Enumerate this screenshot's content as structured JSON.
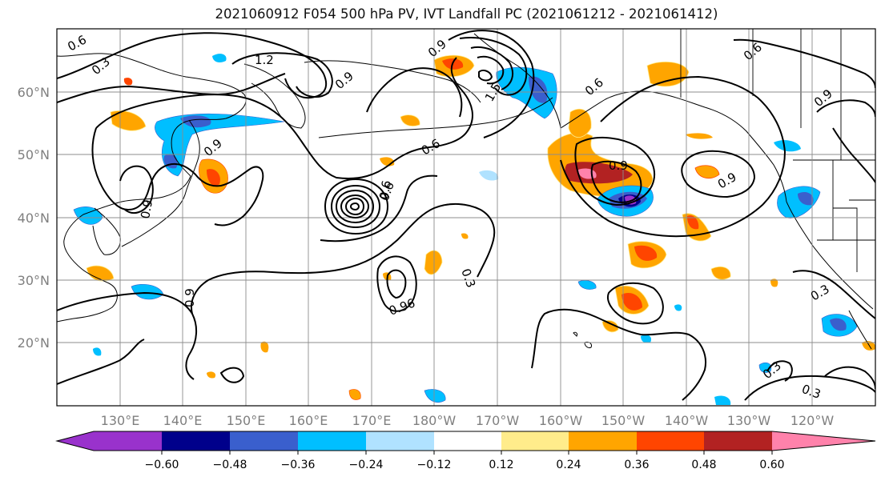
{
  "title": "2021060912 F054 500 hPa PV, IVT Landfall PC (2021061212 - 2021061412)",
  "map": {
    "lat_labels": [
      "60°N",
      "50°N",
      "40°N",
      "30°N",
      "20°N"
    ],
    "lon_labels": [
      "130°E",
      "140°E",
      "150°E",
      "160°E",
      "170°E",
      "180°W",
      "170°W",
      "160°W",
      "150°W",
      "140°W",
      "130°W",
      "120°W"
    ],
    "contour_labels": [
      "0.6",
      "0.3",
      "1.2",
      "0.9",
      "0.9",
      "1.5",
      "0.6",
      "0.9",
      "0.6",
      "0.6",
      "0.9",
      "0.9",
      "0.9",
      "0.6",
      "0.3",
      "0.9",
      "0.3",
      "0.3",
      "0.96",
      "0.6",
      "0.3",
      "0.9"
    ]
  },
  "colorbar": {
    "colors": [
      "#9932cc",
      "#00008b",
      "#3a5fcd",
      "#00bfff",
      "#b0e2ff",
      "#ffffff",
      "#ffec8b",
      "#ffa500",
      "#ff4500",
      "#b22222",
      "#ff82ab"
    ],
    "tick_labels": [
      "−0.60",
      "−0.48",
      "−0.36",
      "−0.24",
      "−0.12",
      "0.12",
      "0.24",
      "0.36",
      "0.48",
      "0.60"
    ]
  }
}
